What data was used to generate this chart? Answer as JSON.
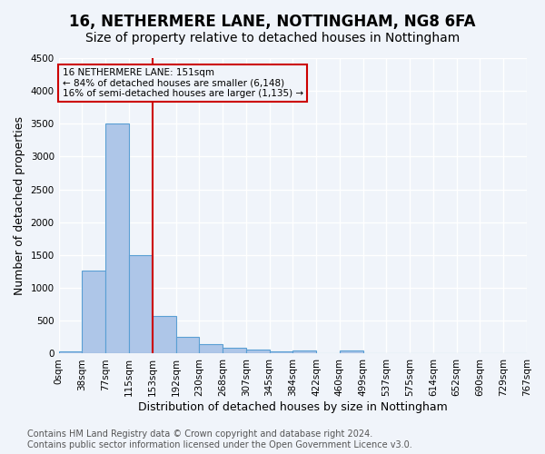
{
  "title": "16, NETHERMERE LANE, NOTTINGHAM, NG8 6FA",
  "subtitle": "Size of property relative to detached houses in Nottingham",
  "xlabel": "Distribution of detached houses by size in Nottingham",
  "ylabel": "Number of detached properties",
  "bin_labels": [
    "0sqm",
    "38sqm",
    "77sqm",
    "115sqm",
    "153sqm",
    "192sqm",
    "230sqm",
    "268sqm",
    "307sqm",
    "345sqm",
    "384sqm",
    "422sqm",
    "460sqm",
    "499sqm",
    "537sqm",
    "575sqm",
    "614sqm",
    "652sqm",
    "690sqm",
    "729sqm",
    "767sqm"
  ],
  "bar_values": [
    30,
    1270,
    3500,
    1500,
    580,
    250,
    140,
    90,
    55,
    35,
    50,
    0,
    50,
    0,
    0,
    0,
    0,
    0,
    0,
    0
  ],
  "bar_color": "#aec6e8",
  "bar_edge_color": "#5a9fd4",
  "vline_x": 4,
  "vline_color": "#cc0000",
  "annotation_text": "16 NETHERMERE LANE: 151sqm\n← 84% of detached houses are smaller (6,148)\n16% of semi-detached houses are larger (1,135) →",
  "annotation_box_color": "#cc0000",
  "ylim": [
    0,
    4500
  ],
  "yticks": [
    0,
    500,
    1000,
    1500,
    2000,
    2500,
    3000,
    3500,
    4000,
    4500
  ],
  "footnote": "Contains HM Land Registry data © Crown copyright and database right 2024.\nContains public sector information licensed under the Open Government Licence v3.0.",
  "bg_color": "#f0f4fa",
  "grid_color": "#ffffff",
  "title_fontsize": 12,
  "subtitle_fontsize": 10,
  "label_fontsize": 9,
  "tick_fontsize": 7.5,
  "footnote_fontsize": 7
}
